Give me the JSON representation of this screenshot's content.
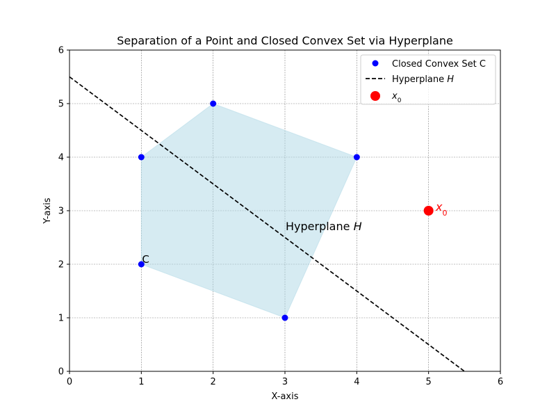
{
  "chart_data": {
    "type": "scatter",
    "title": "Separation of a Point and Closed Convex Set via Hyperplane",
    "xlabel": "X-axis",
    "ylabel": "Y-axis",
    "xlim": [
      0,
      6
    ],
    "ylim": [
      0,
      6
    ],
    "xticks": [
      0,
      1,
      2,
      3,
      4,
      5,
      6
    ],
    "yticks": [
      0,
      1,
      2,
      3,
      4,
      5,
      6
    ],
    "grid": true,
    "legend_position": "top-right",
    "series": [
      {
        "name": "Closed Convex Set C",
        "kind": "scatter",
        "color": "#0000ff",
        "points": [
          [
            1,
            2
          ],
          [
            3,
            1
          ],
          [
            4,
            4
          ],
          [
            2,
            5
          ],
          [
            1,
            4
          ]
        ],
        "fill_polygon": true,
        "fill_color": "#add8e6"
      },
      {
        "name": "Hyperplane H",
        "kind": "line",
        "style": "dashed",
        "color": "#000000",
        "points": [
          [
            0,
            5.5
          ],
          [
            5.5,
            0
          ]
        ]
      },
      {
        "name": "x0",
        "kind": "scatter",
        "color": "#ff0000",
        "points": [
          [
            5,
            3
          ]
        ]
      }
    ],
    "annotations": [
      {
        "text": "C",
        "x": 1,
        "y": 2,
        "color": "#000000"
      },
      {
        "text": "Hyperplane H",
        "x": 3,
        "y": 2.7,
        "color": "#000000"
      },
      {
        "text": "x0",
        "x": 5.1,
        "y": 3,
        "color": "#ff0000"
      }
    ]
  }
}
